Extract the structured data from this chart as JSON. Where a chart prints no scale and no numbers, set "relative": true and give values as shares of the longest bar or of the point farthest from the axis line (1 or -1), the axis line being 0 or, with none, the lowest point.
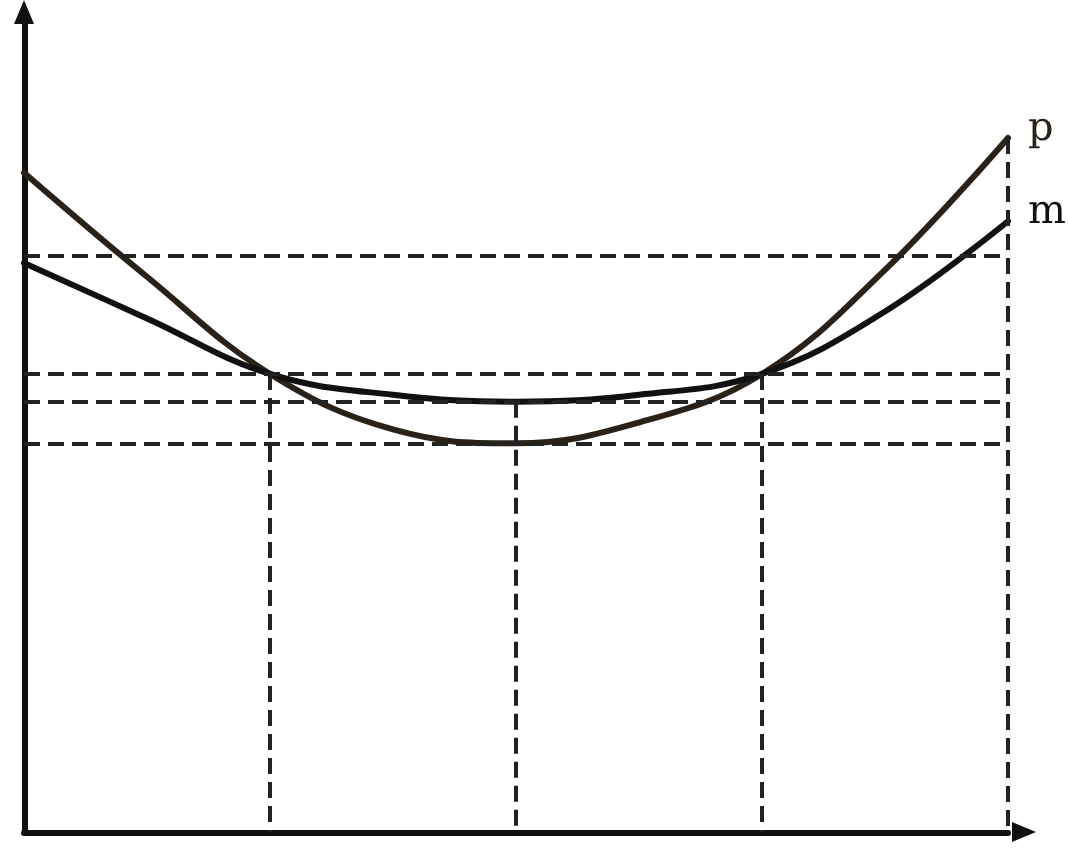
{
  "chart_data": {
    "type": "line",
    "relative": true,
    "categories": [
      null,
      null,
      null,
      null,
      null,
      null,
      null,
      null,
      null
    ],
    "series": [
      {
        "name": "p",
        "color": "#2a2118",
        "values": [
          0.95,
          0.8,
          0.66,
          0.58,
          0.56,
          0.59,
          0.66,
          0.81,
          1.0
        ]
      },
      {
        "name": "m",
        "color": "#111111",
        "values": [
          0.82,
          0.74,
          0.66,
          0.63,
          0.62,
          0.63,
          0.66,
          0.75,
          0.88
        ]
      }
    ],
    "ref_lines": [
      {
        "axis": "y",
        "value": 0.83,
        "line_style": "dashed"
      },
      {
        "axis": "y",
        "value": 0.66,
        "line_style": "dashed"
      },
      {
        "axis": "y",
        "value": 0.62,
        "line_style": "dashed"
      },
      {
        "axis": "y",
        "value": 0.56,
        "line_style": "dashed"
      }
    ],
    "grid": false,
    "legend": false,
    "marker": "none",
    "line_style": "solid"
  }
}
